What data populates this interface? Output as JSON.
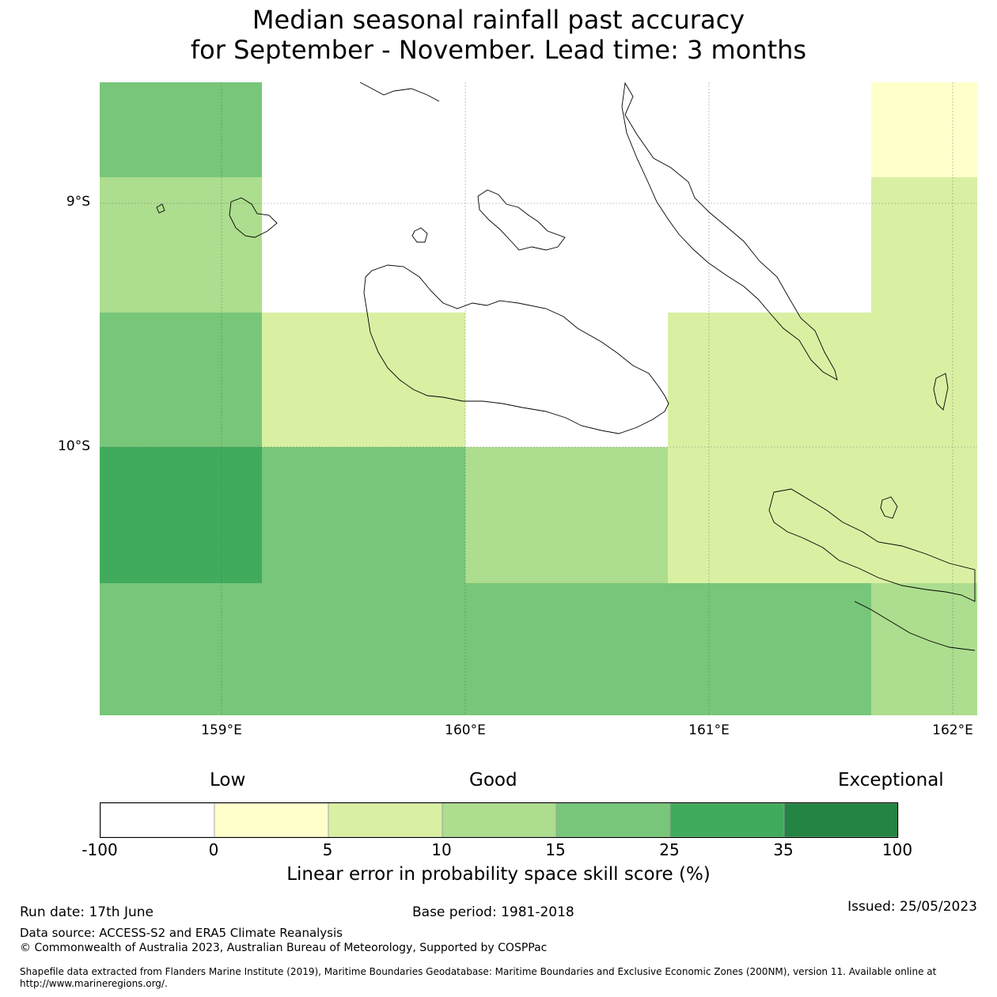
{
  "title_line1": "Median seasonal rainfall past accuracy",
  "title_line2": "for September - November. Lead time: 3 months",
  "map": {
    "lon_range": [
      158.5,
      162.1
    ],
    "lat_range": [
      -11.1,
      -8.5
    ],
    "lat_labels": [
      "9°S",
      "10°S"
    ],
    "lon_labels": [
      "159°E",
      "160°E",
      "161°E",
      "162°E"
    ],
    "cell_colors": {
      "white": "#ffffff",
      "lightyellow": "#ffffcc",
      "yellowgreen": "#d9f0a3",
      "lightgreen": "#addd8e",
      "green": "#78c679",
      "midgreen": "#41ab5d",
      "darkgreen": "#238443"
    }
  },
  "legend": {
    "categories": [
      "Low",
      "Good",
      "Exceptional"
    ],
    "ticks": [
      "-100",
      "0",
      "5",
      "10",
      "15",
      "25",
      "35",
      "100"
    ],
    "colors": [
      "#ffffff",
      "#ffffcc",
      "#d9f0a3",
      "#addd8e",
      "#78c679",
      "#41ab5d",
      "#238443"
    ],
    "label": "Linear error in probability space skill score (%)"
  },
  "footer": {
    "run_date": "Run date: 17th June",
    "base_period": "Base period: 1981-2018",
    "issued": "Issued: 25/05/2023",
    "data_source": "Data source: ACCESS-S2 and ERA5 Climate Reanalysis",
    "copyright": "© Commonwealth of Australia 2023, Australian Bureau of Meteorology, Supported by COSPPac",
    "shapefile_line1": "Shapefile data extracted from Flanders Marine Institute (2019), Maritime Boundaries Geodatabase: Maritime Boundaries and Exclusive Economic Zones (200NM), version 11. Available online at",
    "shapefile_line2": "http://www.marineregions.org/."
  }
}
